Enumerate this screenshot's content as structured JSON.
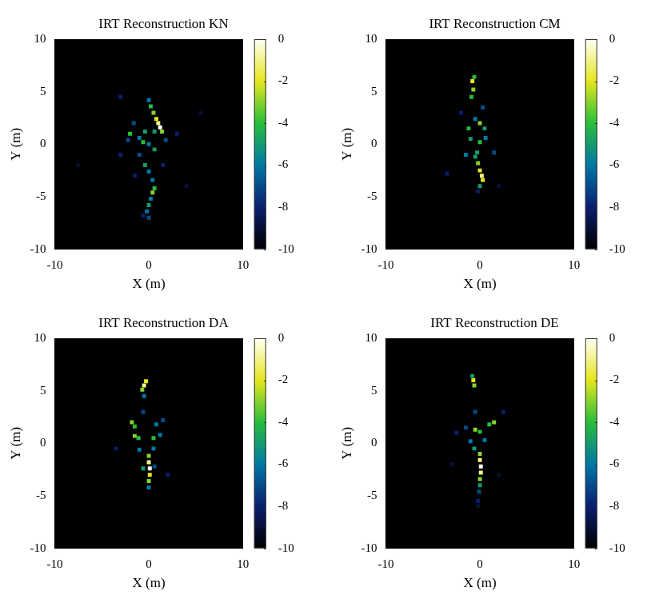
{
  "chart_data": [
    {
      "type": "heatmap",
      "title": "IRT Reconstruction KN",
      "x_label": "X (m)",
      "y_label": "Y (m)",
      "xlim": [
        -10,
        10
      ],
      "xticks": [
        -10,
        0,
        10
      ],
      "ylim": [
        -10,
        10
      ],
      "yticks": [
        -10,
        -5,
        0,
        5,
        10
      ],
      "grid": false,
      "colorbar_range": [
        -10,
        0
      ],
      "colorbar_ticks": [
        -10,
        -8,
        -6,
        -4,
        -2,
        0
      ],
      "cells": [
        [
          1,
          2,
          -1
        ],
        [
          1.2,
          1.6,
          0
        ],
        [
          0.8,
          2.4,
          -2
        ],
        [
          0.5,
          3,
          -3
        ],
        [
          0.2,
          3.6,
          -4
        ],
        [
          0,
          4.2,
          -6
        ],
        [
          1.4,
          1.2,
          -3
        ],
        [
          0.6,
          1.2,
          -5
        ],
        [
          -0.4,
          1.2,
          -5
        ],
        [
          -1,
          0.6,
          -6
        ],
        [
          -2,
          1,
          -4
        ],
        [
          -2.2,
          0.4,
          -7
        ],
        [
          -0.6,
          0.2,
          -4
        ],
        [
          0,
          0,
          -6
        ],
        [
          0.6,
          -0.5,
          -5
        ],
        [
          -1,
          -1,
          -7
        ],
        [
          -0.4,
          -2,
          -5
        ],
        [
          0,
          -2.6,
          -6
        ],
        [
          0.4,
          -3.4,
          -6
        ],
        [
          0.6,
          -4.2,
          -4
        ],
        [
          0.4,
          -4.6,
          -3
        ],
        [
          0.2,
          -5.2,
          -6
        ],
        [
          0,
          -5.8,
          -5
        ],
        [
          -0.2,
          -6.4,
          -6
        ],
        [
          0,
          -7,
          -7
        ],
        [
          -0.6,
          -6.8,
          -8
        ],
        [
          -1.5,
          -3,
          -8
        ],
        [
          1.5,
          -2,
          -8
        ],
        [
          -3,
          -1,
          -8
        ],
        [
          3,
          1,
          -8
        ],
        [
          5.5,
          3,
          -9
        ],
        [
          -7.5,
          -2,
          -9
        ],
        [
          -3,
          4.5,
          -8
        ],
        [
          4,
          -4,
          -9
        ],
        [
          -1.6,
          2,
          -7
        ],
        [
          1.8,
          0.4,
          -7
        ]
      ]
    },
    {
      "type": "heatmap",
      "title": "IRT Reconstruction CM",
      "x_label": "X (m)",
      "y_label": "Y (m)",
      "xlim": [
        -10,
        10
      ],
      "xticks": [
        -10,
        0,
        10
      ],
      "ylim": [
        -10,
        10
      ],
      "yticks": [
        -10,
        -5,
        0,
        5,
        10
      ],
      "grid": false,
      "colorbar_range": [
        -10,
        0
      ],
      "colorbar_ticks": [
        -10,
        -8,
        -6,
        -4,
        -2,
        0
      ],
      "cells": [
        [
          -0.8,
          6,
          -2
        ],
        [
          -0.7,
          5.2,
          -3
        ],
        [
          -0.9,
          4.5,
          -4
        ],
        [
          -0.6,
          6.4,
          -4
        ],
        [
          0,
          2,
          -3
        ],
        [
          -1.2,
          1.5,
          -4
        ],
        [
          0.5,
          1.5,
          -5
        ],
        [
          -1,
          0.5,
          -5
        ],
        [
          0,
          0.2,
          -4
        ],
        [
          -0.2,
          -1.8,
          -3
        ],
        [
          0,
          -2.5,
          -2
        ],
        [
          0.2,
          -3,
          -1
        ],
        [
          0.3,
          -3.4,
          -2
        ],
        [
          0,
          -4,
          -5
        ],
        [
          -0.2,
          -4.5,
          -8
        ],
        [
          -3.5,
          -2.8,
          -8
        ],
        [
          2,
          -4,
          -9
        ],
        [
          1.5,
          -0.8,
          -7
        ],
        [
          -1.5,
          -1,
          -6
        ],
        [
          -0.5,
          -1.2,
          -5
        ],
        [
          -2,
          3,
          -8
        ],
        [
          0.3,
          3.5,
          -7
        ],
        [
          -0.3,
          -0.8,
          -5
        ],
        [
          0.6,
          0.6,
          -6
        ],
        [
          -0.5,
          2.4,
          -6
        ]
      ]
    },
    {
      "type": "heatmap",
      "title": "IRT Reconstruction DA",
      "x_label": "X (m)",
      "y_label": "Y (m)",
      "xlim": [
        -10,
        10
      ],
      "xticks": [
        -10,
        0,
        10
      ],
      "ylim": [
        -10,
        10
      ],
      "yticks": [
        -10,
        -5,
        0,
        5,
        10
      ],
      "grid": false,
      "colorbar_range": [
        -10,
        0
      ],
      "colorbar_ticks": [
        -10,
        -8,
        -6,
        -4,
        -2,
        0
      ],
      "cells": [
        [
          -0.5,
          5.5,
          -1
        ],
        [
          -0.3,
          5.9,
          -2
        ],
        [
          -0.7,
          5.1,
          -3
        ],
        [
          -0.5,
          4.5,
          -6
        ],
        [
          -1.8,
          2,
          -3
        ],
        [
          -1.5,
          1.6,
          -4
        ],
        [
          0.8,
          1.8,
          -6
        ],
        [
          -1.5,
          0.7,
          -3
        ],
        [
          -1.1,
          0.5,
          -4
        ],
        [
          0.5,
          0.5,
          -4
        ],
        [
          1.2,
          0.8,
          -6
        ],
        [
          0,
          -1.2,
          -3
        ],
        [
          0,
          -1.8,
          -1
        ],
        [
          0.1,
          -2.4,
          0
        ],
        [
          0.1,
          -3,
          -2
        ],
        [
          0,
          -3.6,
          -3
        ],
        [
          0,
          -4.2,
          -6
        ],
        [
          -0.6,
          -2.4,
          -5
        ],
        [
          0.6,
          -2.2,
          -7
        ],
        [
          2,
          -3,
          -8
        ],
        [
          -3.5,
          -0.5,
          -8
        ],
        [
          1.5,
          2.2,
          -7
        ],
        [
          -0.6,
          3,
          -7
        ],
        [
          0.5,
          -0.5,
          -6
        ],
        [
          -1,
          -0.6,
          -6
        ]
      ]
    },
    {
      "type": "heatmap",
      "title": "IRT Reconstruction DE",
      "x_label": "X (m)",
      "y_label": "Y (m)",
      "xlim": [
        -10,
        10
      ],
      "xticks": [
        -10,
        0,
        10
      ],
      "ylim": [
        -10,
        10
      ],
      "yticks": [
        -10,
        -5,
        0,
        5,
        10
      ],
      "grid": false,
      "colorbar_range": [
        -10,
        0
      ],
      "colorbar_ticks": [
        -10,
        -8,
        -6,
        -4,
        -2,
        0
      ],
      "cells": [
        [
          -0.7,
          6,
          -2
        ],
        [
          -0.6,
          5.5,
          -3
        ],
        [
          -0.8,
          6.4,
          -5
        ],
        [
          1.5,
          2,
          -3
        ],
        [
          1,
          1.8,
          -4
        ],
        [
          -0.5,
          1.3,
          -3
        ],
        [
          0,
          1.1,
          -4
        ],
        [
          -1.5,
          1.5,
          -7
        ],
        [
          -2.5,
          1,
          -8
        ],
        [
          0.5,
          0.3,
          -6
        ],
        [
          -1,
          0.2,
          -6
        ],
        [
          0,
          -1,
          -3
        ],
        [
          0,
          -1.6,
          -1
        ],
        [
          0.1,
          -2.2,
          0
        ],
        [
          0.1,
          -2.8,
          -1
        ],
        [
          0,
          -3.4,
          -3
        ],
        [
          0,
          -4,
          -5
        ],
        [
          -0.1,
          -4.6,
          -7
        ],
        [
          -0.2,
          -5.5,
          -8
        ],
        [
          -0.2,
          -6,
          -9
        ],
        [
          -0.6,
          -0.5,
          -5
        ],
        [
          -3,
          -2,
          -9
        ],
        [
          2,
          -3,
          -9
        ],
        [
          2.5,
          3,
          -8
        ],
        [
          -0.5,
          3,
          -7
        ]
      ]
    }
  ]
}
